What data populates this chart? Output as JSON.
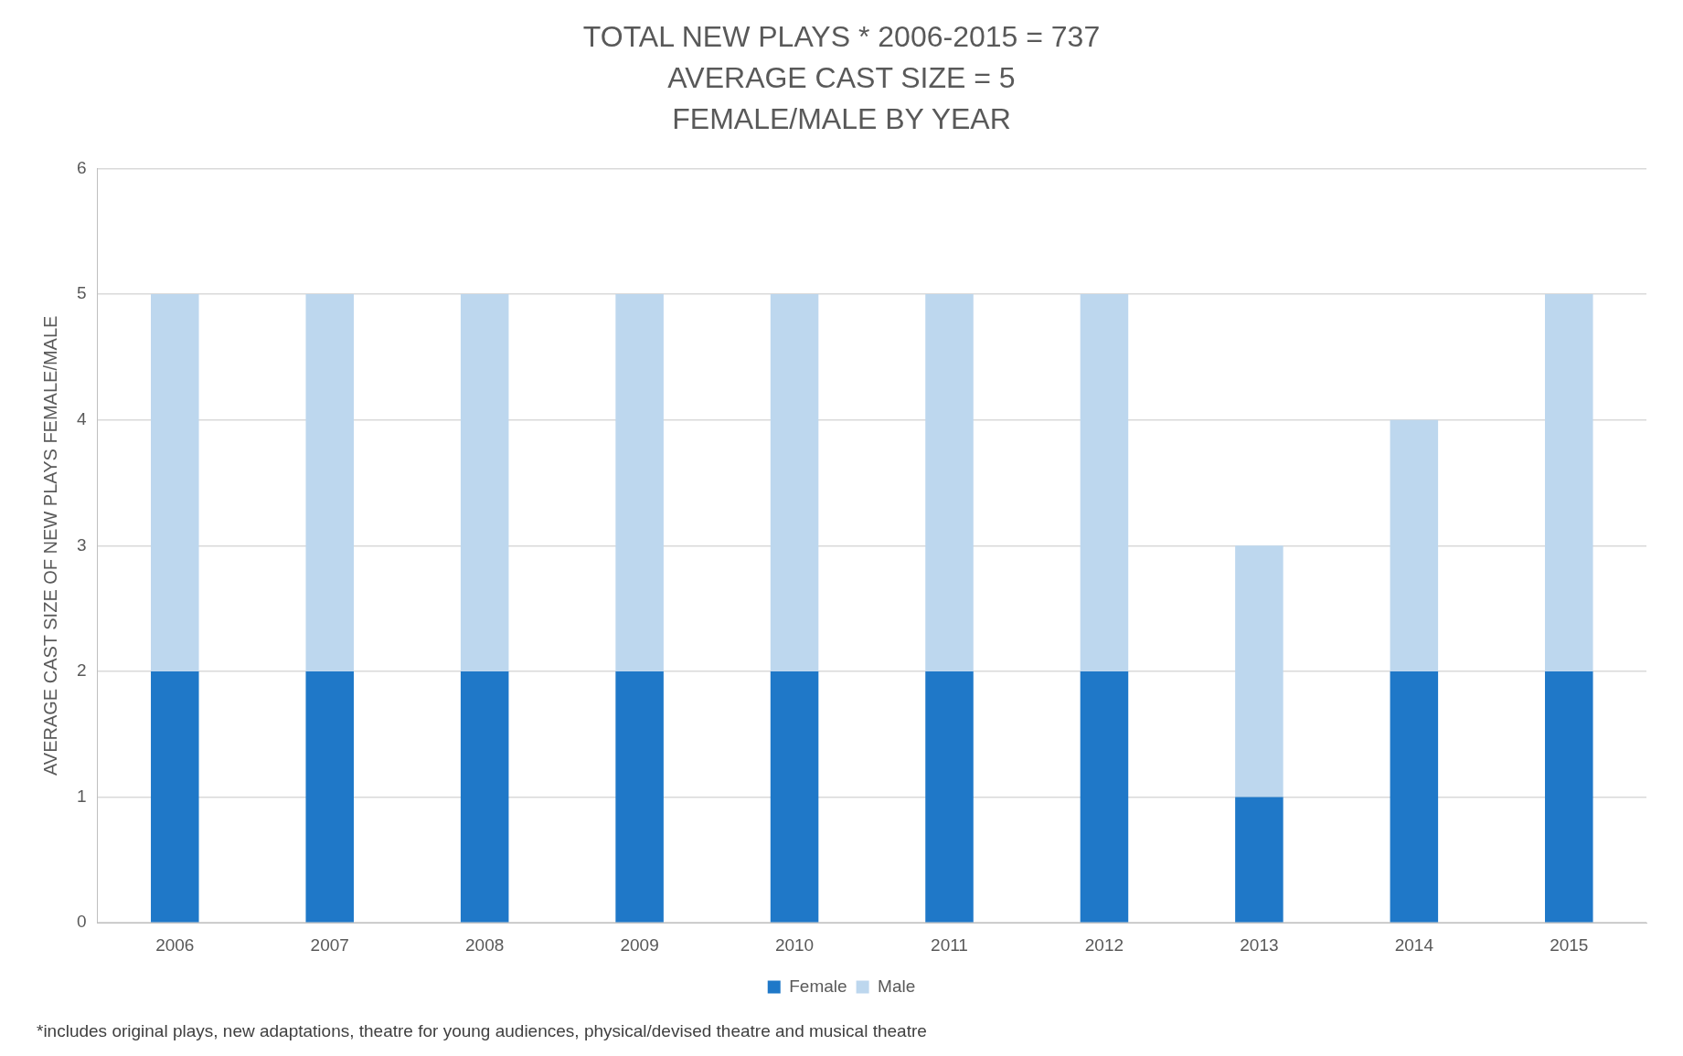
{
  "chart_data": {
    "type": "bar",
    "title": "TOTAL NEW PLAYS * 2006-2015 = 737\nAVERAGE CAST SIZE = 5\nFEMALE/MALE BY YEAR",
    "ylabel": "AVERAGE CAST SIZE OF NEW PLAYS FEMALE/MALE",
    "categories": [
      "2006",
      "2007",
      "2008",
      "2009",
      "2010",
      "2011",
      "2012",
      "2013",
      "2014",
      "2015"
    ],
    "series": [
      {
        "name": "Female",
        "color": "#1f78c8",
        "values": [
          2,
          2,
          2,
          2,
          2,
          2,
          2,
          1,
          2,
          2
        ]
      },
      {
        "name": "Male",
        "color": "#bdd7ee",
        "values": [
          3,
          3,
          3,
          3,
          3,
          3,
          3,
          2,
          2,
          3
        ]
      }
    ],
    "stacked": true,
    "ylim": [
      0,
      6
    ],
    "yticks": [
      0,
      1,
      2,
      3,
      4,
      5,
      6
    ],
    "grid": "y",
    "legend": "bottom",
    "annotations": [
      "*includes original plays, new adaptations, theatre for young audiences, physical/devised theatre and musical theatre"
    ]
  }
}
